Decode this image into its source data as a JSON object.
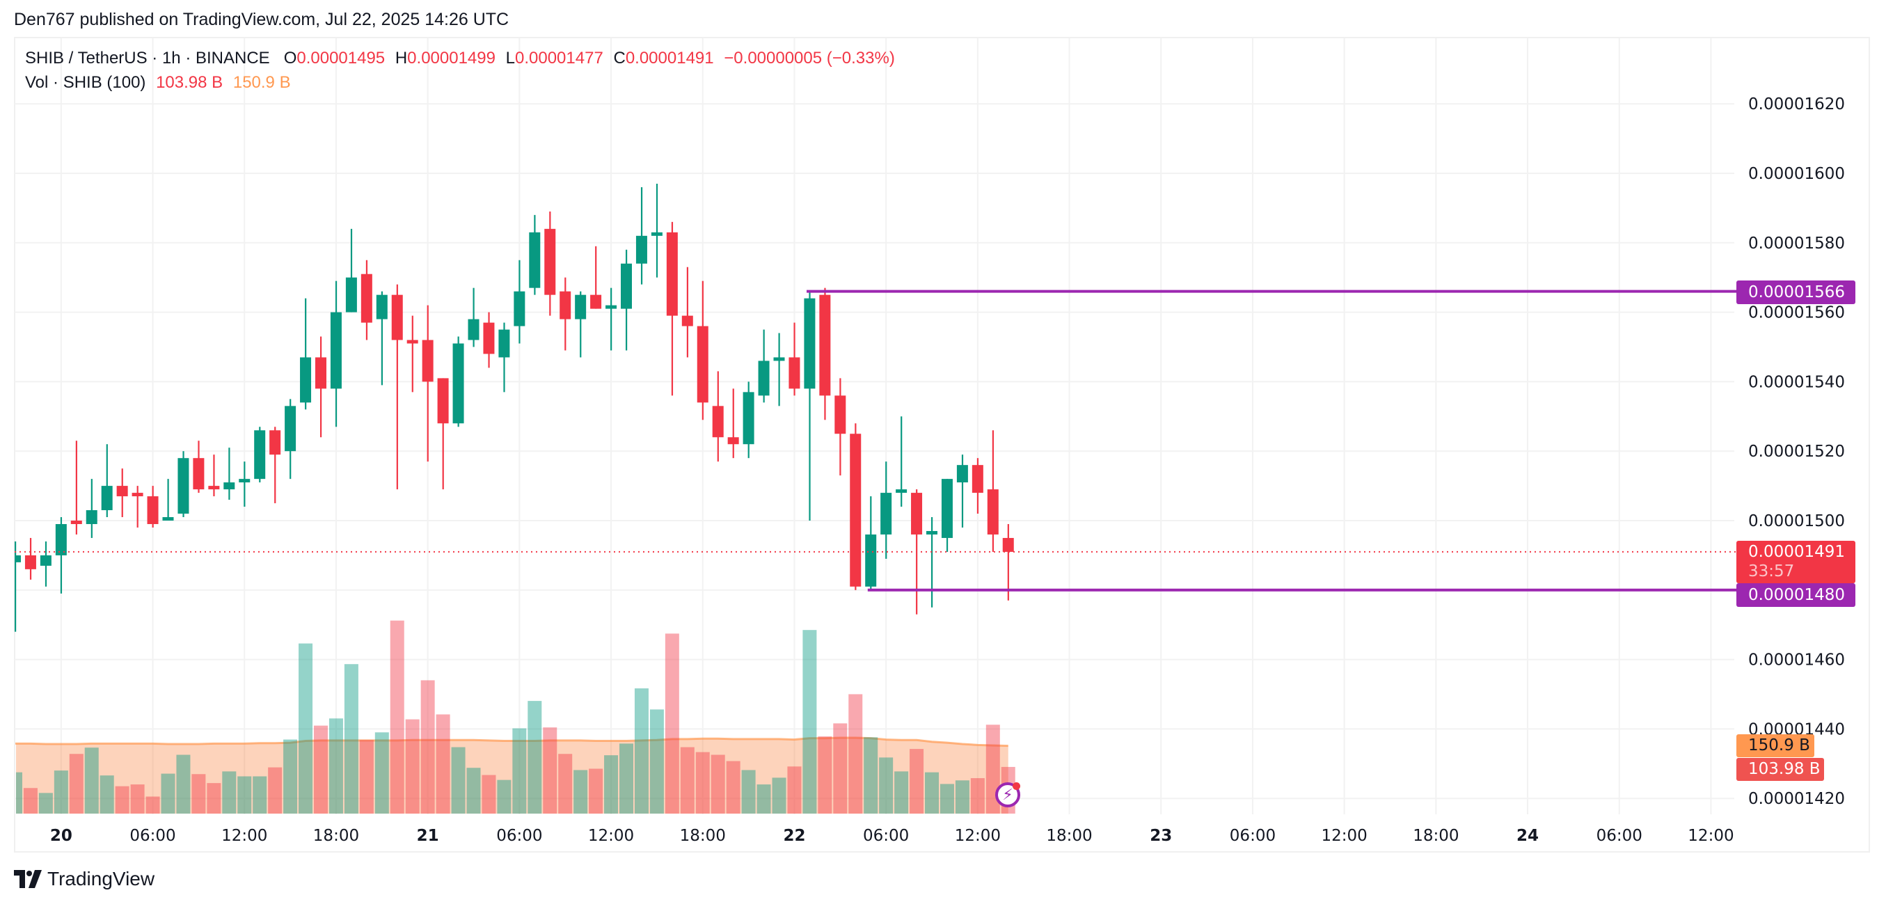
{
  "publish_line": "Den767 published on TradingView.com, Jul 22, 2025 14:26 UTC",
  "legend": {
    "symbol": "SHIB / TetherUS · 1h · BINANCE",
    "o_label": "O",
    "o_value": "0.00001495",
    "h_label": "H",
    "h_value": "0.00001499",
    "l_label": "L",
    "l_value": "0.00001477",
    "c_label": "C",
    "c_value": "0.00001491",
    "change": "−0.00000005 (−0.33%)",
    "vol_label": "Vol · SHIB (100)",
    "vol_value": "103.98 B",
    "vol_ma_value": "150.9 B"
  },
  "price_tags": {
    "upper_line": "0.00001566",
    "lower_line": "0.00001480",
    "last_price": "0.00001491",
    "countdown": "33:57",
    "vol_ma": "150.9 B",
    "vol": "103.98 B"
  },
  "logo_text": "TradingView",
  "colors": {
    "up": "#089981",
    "down": "#F23645",
    "line": "#9C27B0",
    "ma": "#FF9850"
  },
  "chart_data": {
    "type": "candlestick",
    "title": "SHIB / TetherUS · 1h · BINANCE",
    "start_time": "2025-07-19 21:00",
    "interval_hours": 1,
    "price_unit": 1e-08,
    "ylim": [
      1420,
      1620
    ],
    "y_ticks": [
      "0.00001620",
      "0.00001600",
      "0.00001580",
      "0.00001560",
      "0.00001540",
      "0.00001520",
      "0.00001500",
      "0.00001480",
      "0.00001460",
      "0.00001440",
      "0.00001420"
    ],
    "y_tick_values": [
      1620,
      1600,
      1580,
      1560,
      1540,
      1520,
      1500,
      1480,
      1460,
      1440,
      1420
    ],
    "x_ticks": [
      {
        "label": "20",
        "hour": 3,
        "bold": true
      },
      {
        "label": "06:00",
        "hour": 9
      },
      {
        "label": "12:00",
        "hour": 15
      },
      {
        "label": "18:00",
        "hour": 21
      },
      {
        "label": "21",
        "hour": 27,
        "bold": true
      },
      {
        "label": "06:00",
        "hour": 33
      },
      {
        "label": "12:00",
        "hour": 39
      },
      {
        "label": "18:00",
        "hour": 45
      },
      {
        "label": "22",
        "hour": 51,
        "bold": true
      },
      {
        "label": "06:00",
        "hour": 57
      },
      {
        "label": "12:00",
        "hour": 63
      },
      {
        "label": "18:00",
        "hour": 69
      },
      {
        "label": "23",
        "hour": 75,
        "bold": true
      },
      {
        "label": "06:00",
        "hour": 81
      },
      {
        "label": "12:00",
        "hour": 87
      },
      {
        "label": "18:00",
        "hour": 93
      },
      {
        "label": "24",
        "hour": 99,
        "bold": true
      },
      {
        "label": "06:00",
        "hour": 105
      },
      {
        "label": "12:00",
        "hour": 111
      }
    ],
    "ohlc": [
      [
        1488,
        1494,
        1468,
        1490
      ],
      [
        1490,
        1495,
        1483,
        1486
      ],
      [
        1487,
        1494,
        1481,
        1490
      ],
      [
        1490,
        1501,
        1479,
        1499
      ],
      [
        1500,
        1523,
        1496,
        1499
      ],
      [
        1499,
        1512,
        1495,
        1503
      ],
      [
        1503,
        1522,
        1501,
        1510
      ],
      [
        1510,
        1515,
        1501,
        1507
      ],
      [
        1508,
        1510,
        1498,
        1507
      ],
      [
        1507,
        1510,
        1498,
        1499
      ],
      [
        1500,
        1512,
        1500,
        1501
      ],
      [
        1502,
        1520,
        1501,
        1518
      ],
      [
        1518,
        1523,
        1508,
        1509
      ],
      [
        1510,
        1519,
        1507,
        1509
      ],
      [
        1509,
        1521,
        1506,
        1511
      ],
      [
        1511,
        1517,
        1504,
        1512
      ],
      [
        1512,
        1527,
        1511,
        1526
      ],
      [
        1526,
        1527,
        1505,
        1519
      ],
      [
        1520,
        1535,
        1512,
        1533
      ],
      [
        1534,
        1564,
        1532,
        1547
      ],
      [
        1547,
        1553,
        1524,
        1538
      ],
      [
        1538,
        1569,
        1527,
        1560
      ],
      [
        1560,
        1584,
        1560,
        1570
      ],
      [
        1571,
        1575,
        1552,
        1557
      ],
      [
        1558,
        1566,
        1539,
        1565
      ],
      [
        1565,
        1568,
        1509,
        1552
      ],
      [
        1552,
        1559,
        1537,
        1551
      ],
      [
        1552,
        1562,
        1517,
        1540
      ],
      [
        1541,
        1541,
        1509,
        1528
      ],
      [
        1528,
        1553,
        1527,
        1551
      ],
      [
        1552,
        1567,
        1550,
        1558
      ],
      [
        1557,
        1560,
        1544,
        1548
      ],
      [
        1547,
        1557,
        1537,
        1555
      ],
      [
        1556,
        1575,
        1551,
        1566
      ],
      [
        1567,
        1588,
        1565,
        1583
      ],
      [
        1584,
        1589,
        1559,
        1565
      ],
      [
        1566,
        1570,
        1549,
        1558
      ],
      [
        1558,
        1566,
        1547,
        1565
      ],
      [
        1565,
        1579,
        1561,
        1561
      ],
      [
        1561,
        1567,
        1549,
        1562
      ],
      [
        1561,
        1578,
        1549,
        1574
      ],
      [
        1574,
        1596,
        1568,
        1582
      ],
      [
        1582,
        1597,
        1570,
        1583
      ],
      [
        1583,
        1586,
        1536,
        1559
      ],
      [
        1559,
        1573,
        1547,
        1556
      ],
      [
        1556,
        1569,
        1529,
        1534
      ],
      [
        1533,
        1543,
        1517,
        1524
      ],
      [
        1524,
        1538,
        1518,
        1522
      ],
      [
        1522,
        1540,
        1518,
        1537
      ],
      [
        1536,
        1555,
        1534,
        1546
      ],
      [
        1546,
        1554,
        1533,
        1547
      ],
      [
        1547,
        1557,
        1536,
        1538
      ],
      [
        1538,
        1566,
        1500,
        1564
      ],
      [
        1565,
        1567,
        1529,
        1536
      ],
      [
        1536,
        1541,
        1513,
        1525
      ],
      [
        1525,
        1528,
        1480,
        1481
      ],
      [
        1481,
        1507,
        1480,
        1496
      ],
      [
        1496,
        1517,
        1489,
        1508
      ],
      [
        1508,
        1530,
        1504,
        1509
      ],
      [
        1508,
        1509,
        1473,
        1496
      ],
      [
        1496,
        1501,
        1475,
        1497
      ],
      [
        1495,
        1512,
        1491,
        1512
      ],
      [
        1511,
        1519,
        1498,
        1516
      ],
      [
        1516,
        1518,
        1502,
        1508
      ],
      [
        1509,
        1526,
        1491,
        1496
      ],
      [
        1495,
        1499,
        1477,
        1491
      ]
    ],
    "volume_unit": "B",
    "volume": [
      92,
      57,
      46,
      96,
      133,
      147,
      85,
      61,
      65,
      38,
      89,
      131,
      88,
      68,
      94,
      83,
      83,
      103,
      165,
      379,
      196,
      212,
      333,
      164,
      181,
      430,
      210,
      297,
      221,
      148,
      102,
      86,
      75,
      190,
      251,
      192,
      133,
      97,
      100,
      130,
      156,
      279,
      232,
      401,
      148,
      137,
      131,
      117,
      97,
      65,
      80,
      105,
      409,
      172,
      201,
      266,
      170,
      125,
      94,
      144,
      92,
      66,
      74,
      79,
      198,
      103.98
    ],
    "volume_ma": [
      156,
      156,
      155,
      155,
      155,
      156,
      156,
      156,
      156,
      156,
      155,
      155,
      155,
      156,
      156,
      156,
      157,
      157,
      158,
      162,
      163,
      163,
      163,
      163,
      163,
      163,
      164,
      164,
      164,
      164,
      164,
      163,
      162,
      162,
      162,
      163,
      163,
      163,
      162,
      162,
      162,
      163,
      164,
      166,
      166,
      167,
      167,
      166,
      166,
      166,
      166,
      165,
      168,
      168,
      169,
      169,
      168,
      165,
      164,
      164,
      160,
      158,
      155,
      153,
      152,
      150.9
    ],
    "horizontal_lines": [
      {
        "price": 1566,
        "start_index": 51.8
      },
      {
        "price": 1480,
        "start_index": 55.8
      }
    ],
    "last_price": 1491
  }
}
